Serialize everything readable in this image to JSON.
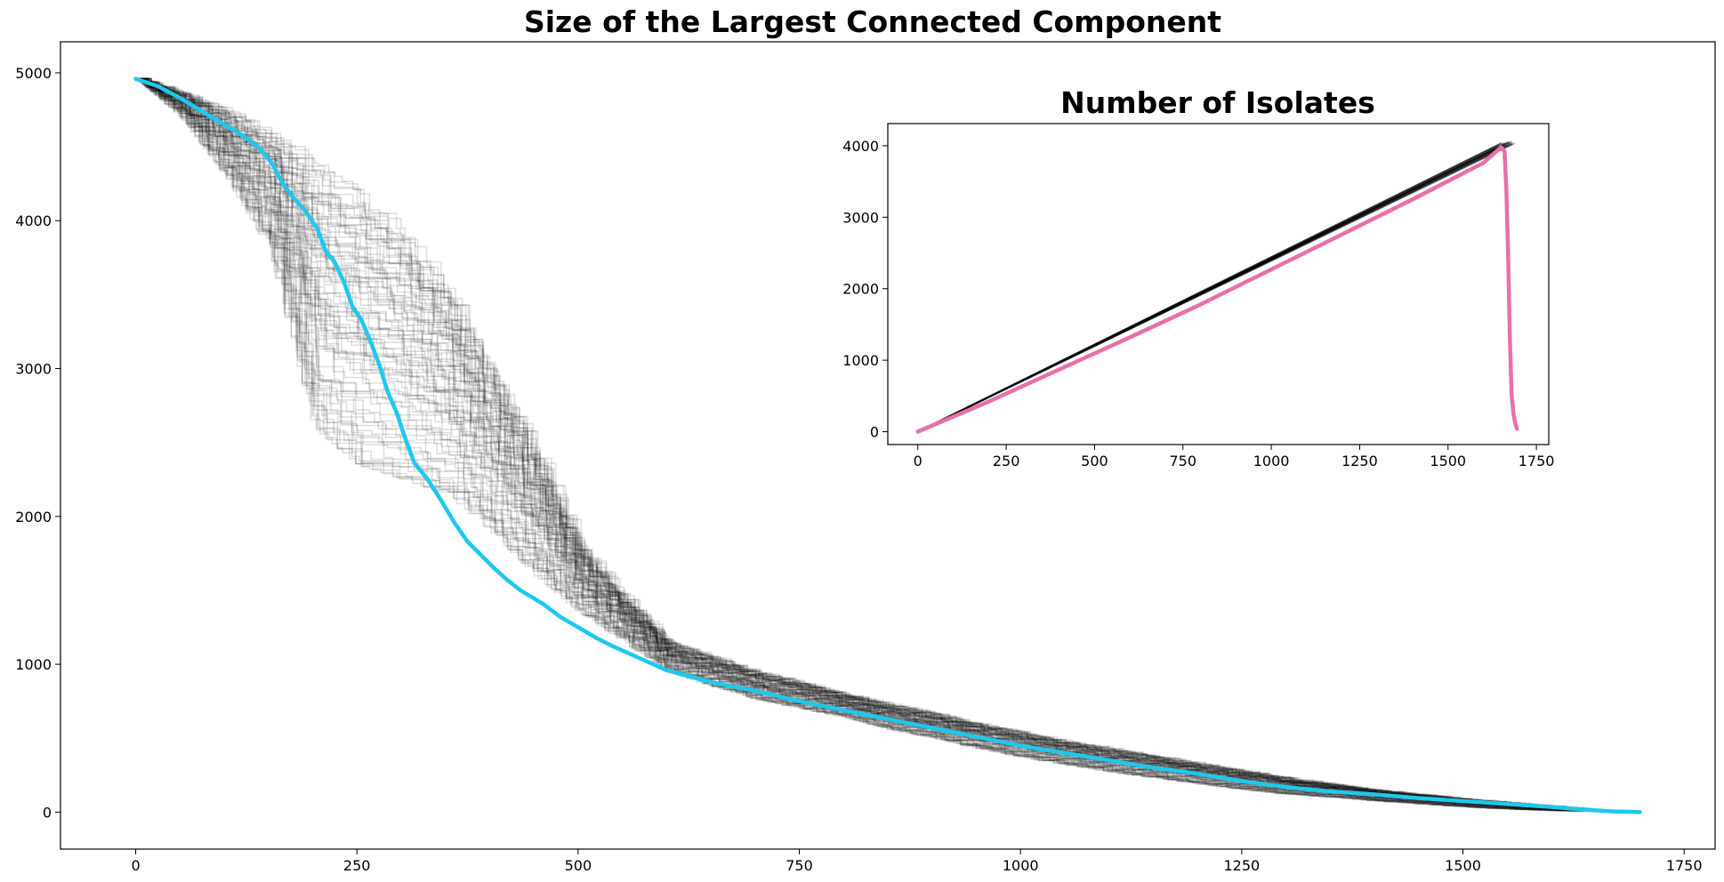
{
  "chart_data": [
    {
      "type": "line",
      "title": "Size of the Largest Connected Component",
      "xlabel": "",
      "ylabel": "",
      "xlim": [
        -85,
        1785
      ],
      "ylim": [
        -250,
        5210
      ],
      "xticks": [
        0,
        250,
        500,
        750,
        1000,
        1250,
        1500,
        1750
      ],
      "yticks": [
        0,
        1000,
        2000,
        3000,
        4000,
        5000
      ],
      "xtick_labels": [
        "0",
        "250",
        "500",
        "750",
        "1000",
        "1250",
        "1500",
        "1750"
      ],
      "ytick_labels": [
        "0",
        "1000",
        "2000",
        "3000",
        "4000",
        "5000"
      ],
      "grid": false,
      "series": [
        {
          "style": "highlight",
          "color": "#1ec8ee",
          "x": [
            0,
            25,
            50,
            75,
            100,
            125,
            140,
            155,
            165,
            180,
            190,
            205,
            215,
            225,
            235,
            245,
            255,
            265,
            275,
            285,
            295,
            305,
            315,
            330,
            345,
            360,
            375,
            390,
            405,
            420,
            435,
            460,
            480,
            500,
            520,
            540,
            570,
            600,
            650,
            700,
            750,
            800,
            850,
            900,
            950,
            1000,
            1050,
            1100,
            1150,
            1200,
            1250,
            1300,
            1350,
            1400,
            1450,
            1500,
            1550,
            1600,
            1640,
            1670,
            1700
          ],
          "y": [
            4960,
            4910,
            4830,
            4740,
            4650,
            4560,
            4490,
            4380,
            4260,
            4140,
            4080,
            3950,
            3790,
            3720,
            3590,
            3420,
            3330,
            3190,
            3030,
            2840,
            2700,
            2520,
            2360,
            2250,
            2110,
            1960,
            1830,
            1740,
            1650,
            1570,
            1500,
            1410,
            1320,
            1250,
            1180,
            1120,
            1040,
            960,
            880,
            820,
            750,
            690,
            630,
            570,
            510,
            450,
            400,
            350,
            300,
            260,
            210,
            170,
            140,
            120,
            95,
            75,
            55,
            35,
            15,
            5,
            0
          ]
        },
        {
          "style": "ensemble-band",
          "color": "#000000",
          "x": [
            0,
            50,
            100,
            150,
            200,
            250,
            300,
            350,
            400,
            450,
            500,
            550,
            600,
            650,
            700,
            750,
            800,
            850,
            900,
            950,
            1000,
            1050,
            1100,
            1150,
            1200,
            1250,
            1300,
            1350,
            1400,
            1450,
            1500,
            1550,
            1600,
            1650,
            1700
          ],
          "upper": [
            4960,
            4870,
            4750,
            4600,
            4400,
            4200,
            3950,
            3550,
            3000,
            2450,
            1800,
            1450,
            1150,
            1050,
            950,
            880,
            800,
            730,
            670,
            600,
            540,
            480,
            430,
            380,
            330,
            280,
            230,
            190,
            150,
            120,
            90,
            65,
            40,
            15,
            0
          ],
          "lower": [
            4960,
            4700,
            4300,
            3800,
            2600,
            2350,
            2250,
            2150,
            1900,
            1600,
            1350,
            1150,
            950,
            850,
            760,
            700,
            640,
            560,
            500,
            430,
            370,
            320,
            270,
            230,
            190,
            150,
            120,
            100,
            75,
            55,
            35,
            20,
            10,
            5,
            0
          ]
        }
      ]
    },
    {
      "type": "line",
      "title": "Number of Isolates",
      "xlabel": "",
      "ylabel": "",
      "xlim": [
        -85,
        1785
      ],
      "ylim": [
        -180,
        4310
      ],
      "xticks": [
        0,
        250,
        500,
        750,
        1000,
        1250,
        1500,
        1750
      ],
      "yticks": [
        0,
        1000,
        2000,
        3000,
        4000
      ],
      "xtick_labels": [
        "0",
        "250",
        "500",
        "750",
        "1000",
        "1250",
        "1500",
        "1750"
      ],
      "ytick_labels": [
        "0",
        "1000",
        "2000",
        "3000",
        "4000"
      ],
      "grid": false,
      "series": [
        {
          "style": "ensemble-band",
          "color": "#000000",
          "x": [
            0,
            1650,
            1690
          ],
          "upper": [
            0,
            4040,
            4080
          ],
          "lower": [
            0,
            3980,
            4030
          ]
        },
        {
          "style": "highlight",
          "color": "#e86faa",
          "x": [
            0,
            200,
            400,
            600,
            800,
            1000,
            1200,
            1400,
            1600,
            1650,
            1660,
            1665,
            1670,
            1675,
            1680,
            1685,
            1690,
            1695
          ],
          "y": [
            0,
            420,
            870,
            1320,
            1780,
            2270,
            2760,
            3250,
            3760,
            3980,
            3920,
            3400,
            2500,
            1300,
            500,
            250,
            120,
            40
          ]
        }
      ]
    }
  ]
}
